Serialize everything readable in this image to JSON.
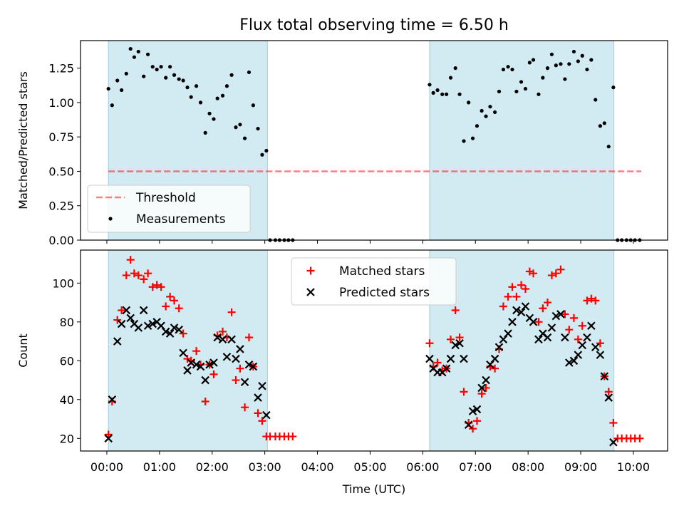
{
  "title": "Flux total observing time = 6.50 h",
  "colors": {
    "shade": "#add8e6",
    "threshold": "#ff0000",
    "measurements": "#000000",
    "matched": "#ff0000",
    "predicted": "#000000"
  },
  "chart_data": [
    {
      "type": "scatter",
      "ylabel": "Matched/Predicted stars",
      "xlim": [
        -0.5,
        10.65
      ],
      "ylim": [
        0,
        1.45
      ],
      "yticks": [
        0.0,
        0.25,
        0.5,
        0.75,
        1.0,
        1.25
      ],
      "ytick_labels": [
        "0.00",
        "0.25",
        "0.50",
        "0.75",
        "1.00",
        "1.25"
      ],
      "shaded_intervals": [
        [
          0.03,
          3.05
        ],
        [
          6.13,
          9.63
        ]
      ],
      "legend": {
        "placement": "lower-left",
        "entries": [
          "Threshold",
          "Measurements"
        ]
      },
      "threshold": {
        "name": "Threshold",
        "y": 0.5,
        "x_range": [
          0.03,
          10.15
        ],
        "style": "dashed"
      },
      "series": [
        {
          "name": "Measurements",
          "x": [
            0.03,
            0.1,
            0.2,
            0.28,
            0.37,
            0.45,
            0.52,
            0.6,
            0.7,
            0.78,
            0.87,
            0.95,
            1.03,
            1.12,
            1.2,
            1.28,
            1.37,
            1.45,
            1.53,
            1.6,
            1.7,
            1.78,
            1.87,
            1.95,
            2.03,
            2.1,
            2.2,
            2.28,
            2.37,
            2.45,
            2.53,
            2.62,
            2.7,
            2.78,
            2.87,
            2.95,
            3.03,
            3.1,
            3.2,
            3.28,
            3.37,
            3.45,
            3.53,
            6.13,
            6.2,
            6.28,
            6.37,
            6.45,
            6.53,
            6.62,
            6.7,
            6.78,
            6.87,
            6.95,
            7.03,
            7.12,
            7.2,
            7.28,
            7.37,
            7.45,
            7.53,
            7.62,
            7.7,
            7.78,
            7.87,
            7.95,
            8.03,
            8.1,
            8.2,
            8.28,
            8.37,
            8.45,
            8.53,
            8.62,
            8.7,
            8.78,
            8.87,
            8.95,
            9.03,
            9.12,
            9.2,
            9.28,
            9.37,
            9.45,
            9.53,
            9.62,
            9.7,
            9.78,
            9.87,
            9.95,
            10.03,
            10.12
          ],
          "y": [
            1.1,
            0.98,
            1.16,
            1.09,
            1.21,
            1.39,
            1.33,
            1.37,
            1.19,
            1.35,
            1.26,
            1.24,
            1.26,
            1.18,
            1.26,
            1.2,
            1.17,
            1.16,
            1.11,
            1.04,
            1.12,
            1.0,
            0.78,
            0.92,
            0.88,
            1.03,
            1.05,
            1.12,
            1.2,
            0.82,
            0.84,
            0.74,
            1.22,
            0.98,
            0.81,
            0.62,
            0.65,
            0,
            0,
            0,
            0,
            0,
            0,
            1.13,
            1.07,
            1.09,
            1.06,
            1.06,
            1.18,
            1.25,
            1.06,
            0.72,
            1.0,
            0.74,
            0.83,
            0.94,
            0.9,
            0.97,
            0.93,
            1.08,
            1.24,
            1.26,
            1.24,
            1.08,
            1.15,
            1.1,
            1.29,
            1.31,
            1.06,
            1.18,
            1.25,
            1.35,
            1.27,
            1.28,
            1.17,
            1.28,
            1.37,
            1.3,
            1.34,
            1.24,
            1.31,
            1.02,
            0.83,
            0.85,
            0.68,
            1.11,
            0,
            0,
            0,
            0,
            0,
            0
          ]
        }
      ]
    },
    {
      "type": "scatter",
      "xlabel": "Time (UTC)",
      "ylabel": "Count",
      "xlim": [
        -0.5,
        10.65
      ],
      "ylim": [
        13.5,
        117
      ],
      "yticks": [
        20,
        40,
        60,
        80,
        100
      ],
      "xticks": [
        0,
        1,
        2,
        3,
        4,
        5,
        6,
        7,
        8,
        9,
        10
      ],
      "xtick_labels": [
        "00:00",
        "01:00",
        "02:00",
        "03:00",
        "04:00",
        "05:00",
        "06:00",
        "07:00",
        "08:00",
        "09:00",
        "10:00"
      ],
      "shaded_intervals": [
        [
          0.03,
          3.05
        ],
        [
          6.13,
          9.63
        ]
      ],
      "legend": {
        "placement": "top-center",
        "entries": [
          "Matched stars",
          "Predicted stars"
        ]
      },
      "series": [
        {
          "name": "Matched stars",
          "marker": "plus",
          "x": [
            0.03,
            0.1,
            0.2,
            0.28,
            0.37,
            0.45,
            0.52,
            0.6,
            0.7,
            0.78,
            0.87,
            0.95,
            1.03,
            1.12,
            1.2,
            1.28,
            1.37,
            1.45,
            1.53,
            1.6,
            1.7,
            1.78,
            1.87,
            1.95,
            2.03,
            2.1,
            2.2,
            2.28,
            2.37,
            2.45,
            2.53,
            2.62,
            2.7,
            2.78,
            2.87,
            2.95,
            3.03,
            3.1,
            3.2,
            3.28,
            3.37,
            3.45,
            3.53,
            6.13,
            6.2,
            6.28,
            6.37,
            6.45,
            6.53,
            6.62,
            6.7,
            6.78,
            6.87,
            6.95,
            7.03,
            7.12,
            7.2,
            7.28,
            7.37,
            7.45,
            7.53,
            7.62,
            7.7,
            7.78,
            7.87,
            7.95,
            8.03,
            8.1,
            8.2,
            8.28,
            8.37,
            8.45,
            8.53,
            8.62,
            8.7,
            8.78,
            8.87,
            8.95,
            9.03,
            9.12,
            9.2,
            9.28,
            9.37,
            9.45,
            9.53,
            9.62,
            9.7,
            9.78,
            9.87,
            9.95,
            10.03,
            10.12
          ],
          "y": [
            22,
            39,
            81,
            86,
            104,
            112,
            105,
            104,
            102,
            105,
            98,
            99,
            98,
            88,
            93,
            91,
            87,
            74,
            61,
            60,
            65,
            58,
            39,
            58,
            53,
            73,
            75,
            72,
            85,
            50,
            56,
            36,
            72,
            57,
            33,
            29,
            21,
            21,
            21,
            21,
            21,
            21,
            21,
            69,
            57,
            59,
            55,
            56,
            71,
            86,
            72,
            44,
            28,
            25,
            29,
            43,
            46,
            57,
            56,
            66,
            88,
            93,
            98,
            93,
            99,
            97,
            106,
            105,
            80,
            87,
            90,
            104,
            105,
            107,
            84,
            76,
            82,
            71,
            78,
            91,
            92,
            91,
            69,
            52,
            44,
            28,
            20,
            20,
            20,
            20,
            20,
            20
          ]
        },
        {
          "name": "Predicted stars",
          "marker": "cross",
          "x": [
            0.03,
            0.1,
            0.2,
            0.28,
            0.37,
            0.45,
            0.52,
            0.6,
            0.7,
            0.78,
            0.87,
            0.95,
            1.03,
            1.12,
            1.2,
            1.28,
            1.37,
            1.45,
            1.53,
            1.6,
            1.7,
            1.78,
            1.87,
            1.95,
            2.03,
            2.1,
            2.2,
            2.28,
            2.37,
            2.45,
            2.53,
            2.62,
            2.7,
            2.78,
            2.87,
            2.95,
            3.03,
            6.13,
            6.2,
            6.28,
            6.37,
            6.45,
            6.53,
            6.62,
            6.7,
            6.78,
            6.87,
            6.95,
            7.03,
            7.12,
            7.2,
            7.28,
            7.37,
            7.45,
            7.53,
            7.62,
            7.7,
            7.78,
            7.87,
            7.95,
            8.03,
            8.1,
            8.2,
            8.28,
            8.37,
            8.45,
            8.53,
            8.62,
            8.7,
            8.78,
            8.87,
            8.95,
            9.03,
            9.12,
            9.2,
            9.28,
            9.37,
            9.45,
            9.53,
            9.62
          ],
          "y": [
            20,
            40,
            70,
            79,
            86,
            82,
            79,
            77,
            86,
            78,
            79,
            80,
            78,
            75,
            74,
            77,
            76,
            64,
            55,
            59,
            58,
            57,
            50,
            58,
            59,
            72,
            71,
            62,
            71,
            61,
            66,
            49,
            58,
            57,
            41,
            47,
            32,
            61,
            56,
            54,
            54,
            56,
            61,
            68,
            69,
            61,
            27,
            34,
            35,
            46,
            50,
            58,
            61,
            67,
            71,
            74,
            80,
            86,
            85,
            88,
            82,
            80,
            71,
            74,
            72,
            77,
            83,
            84,
            72,
            59,
            60,
            63,
            68,
            72,
            78,
            67,
            63,
            52,
            41,
            18
          ]
        }
      ]
    }
  ]
}
